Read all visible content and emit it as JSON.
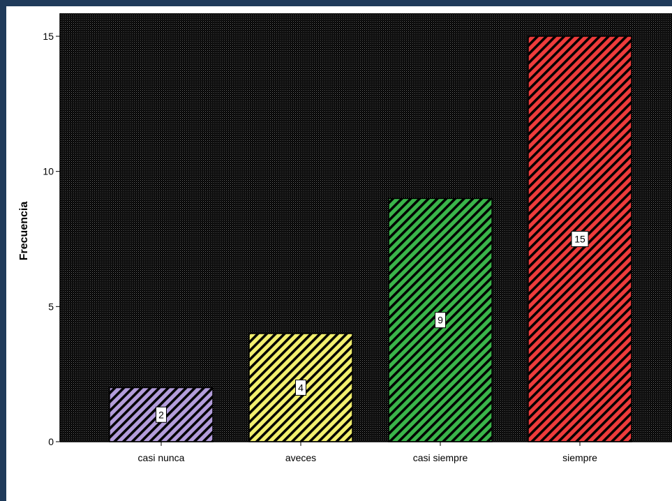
{
  "chart_data": {
    "type": "bar",
    "categories": [
      "casi nunca",
      "aveces",
      "casi siempre",
      "siempre"
    ],
    "values": [
      2,
      4,
      9,
      15
    ],
    "data_labels": [
      "2",
      "4",
      "9",
      "15"
    ],
    "bar_colors": [
      "#b39ddb",
      "#f2ef6e",
      "#3ab54a",
      "#ee3b3b"
    ],
    "hatch": "diagonal",
    "plot_background": "#000000",
    "title": "",
    "xlabel": "",
    "ylabel": "Frecuencia",
    "ylim": [
      0,
      15
    ],
    "yticks": [
      "0",
      "5",
      "10",
      "15"
    ],
    "grid": false,
    "legend": "none"
  }
}
